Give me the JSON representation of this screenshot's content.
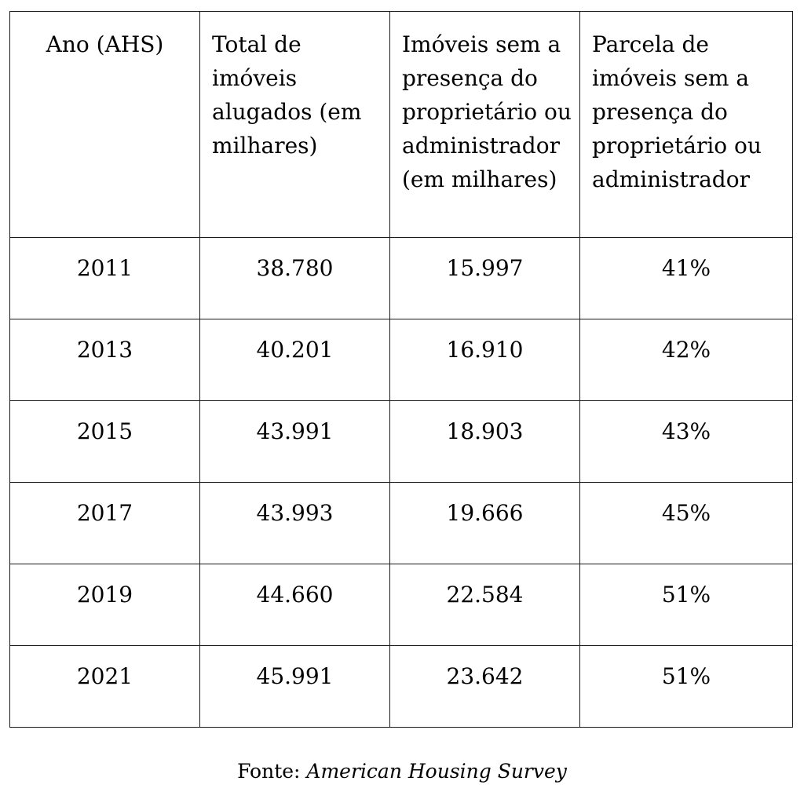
{
  "table": {
    "headers": [
      "Ano (AHS)",
      "Total de imóveis alugados (em milhares)",
      "Imóveis sem a presença do proprietário ou administrador (em milhares)",
      "Parcela de imóveis sem a presença do proprietário ou administrador"
    ],
    "rows": [
      [
        "2011",
        "38.780",
        "15.997",
        "41%"
      ],
      [
        "2013",
        "40.201",
        "16.910",
        "42%"
      ],
      [
        "2015",
        "43.991",
        "18.903",
        "43%"
      ],
      [
        "2017",
        "43.993",
        "19.666",
        "45%"
      ],
      [
        "2019",
        "44.660",
        "22.584",
        "51%"
      ],
      [
        "2021",
        "45.991",
        "23.642",
        "51%"
      ]
    ]
  },
  "source": {
    "label": "Fonte:",
    "name": "American Housing Survey"
  }
}
